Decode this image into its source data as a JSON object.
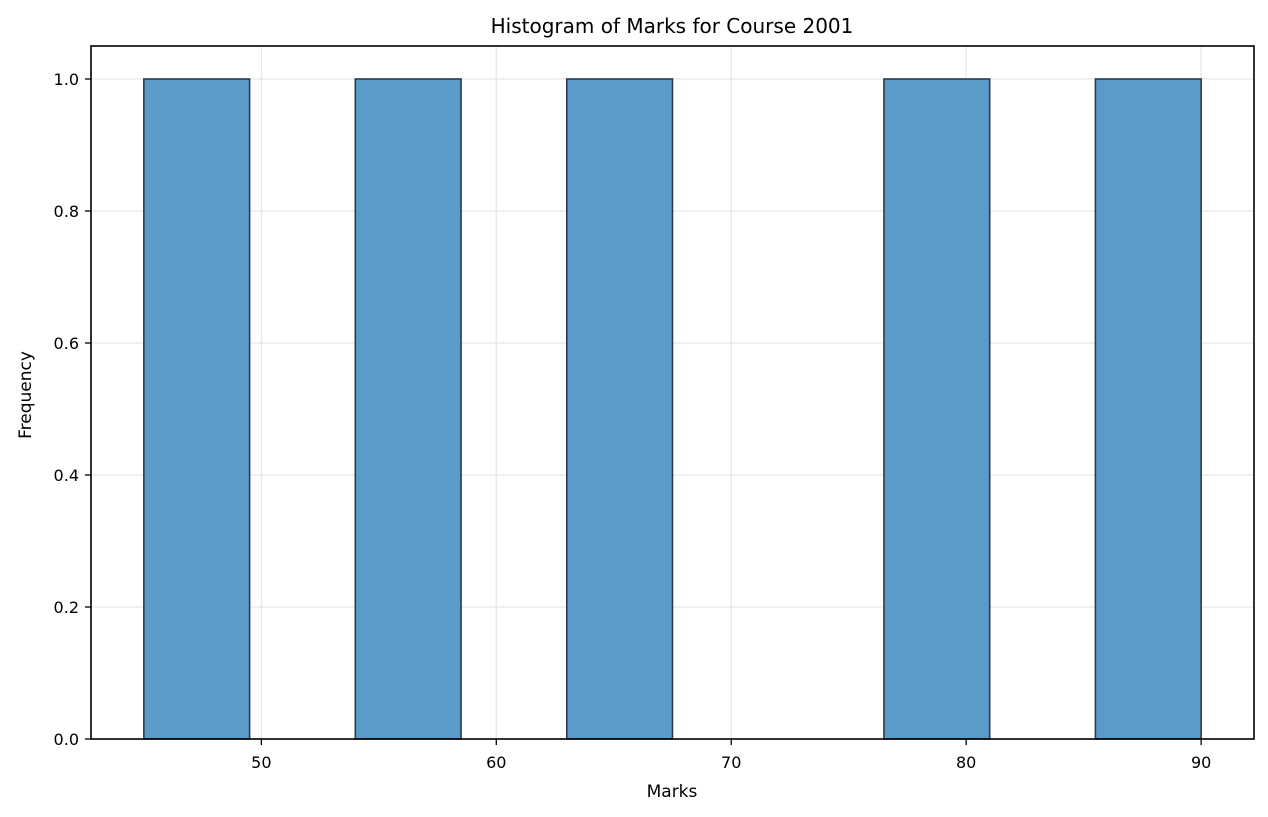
{
  "chart_data": {
    "type": "bar",
    "title": "Histogram of Marks for Course 2001",
    "xlabel": "Marks",
    "ylabel": "Frequency",
    "xlim": [
      42.75,
      92.25
    ],
    "ylim": [
      0,
      1.05
    ],
    "xticks": [
      50,
      60,
      70,
      80,
      90
    ],
    "xtick_labels": [
      "50",
      "60",
      "70",
      "80",
      "90"
    ],
    "yticks": [
      0,
      0.2,
      0.4,
      0.6,
      0.8,
      1.0
    ],
    "ytick_labels": [
      "0.0",
      "0.2",
      "0.4",
      "0.6",
      "0.8",
      "1.0"
    ],
    "bins": [
      {
        "x0": 45.0,
        "x1": 49.5,
        "count": 1
      },
      {
        "x0": 49.5,
        "x1": 54.0,
        "count": 0
      },
      {
        "x0": 54.0,
        "x1": 58.5,
        "count": 1
      },
      {
        "x0": 58.5,
        "x1": 63.0,
        "count": 0
      },
      {
        "x0": 63.0,
        "x1": 67.5,
        "count": 1
      },
      {
        "x0": 67.5,
        "x1": 72.0,
        "count": 0
      },
      {
        "x0": 72.0,
        "x1": 76.5,
        "count": 0
      },
      {
        "x0": 76.5,
        "x1": 81.0,
        "count": 1
      },
      {
        "x0": 81.0,
        "x1": 85.5,
        "count": 0
      },
      {
        "x0": 85.5,
        "x1": 90.0,
        "count": 1
      }
    ],
    "grid": true,
    "colors": {
      "bar_fill": "#5a9bca",
      "bar_edge": "#2b3b4b",
      "grid": "#e6e6e6",
      "axis": "#000000"
    }
  }
}
